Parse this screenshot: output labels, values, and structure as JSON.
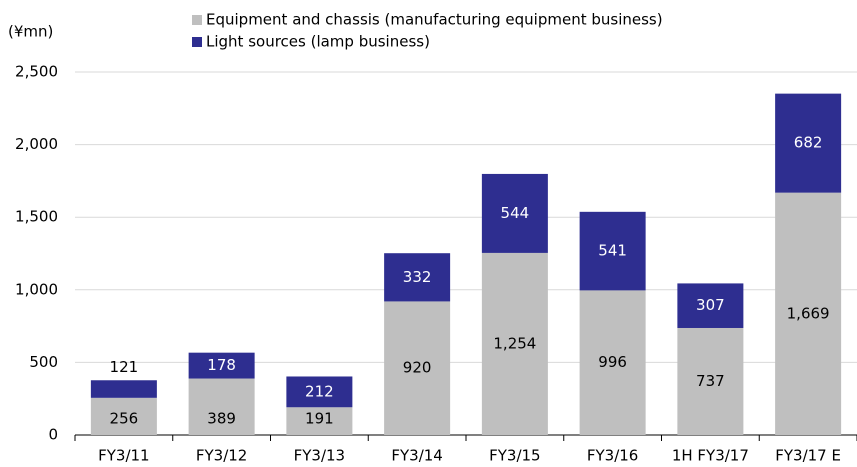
{
  "chart_data": {
    "type": "stacked_bar",
    "y_label": "(¥mn)",
    "categories": [
      "FY3/11",
      "FY3/12",
      "FY3/13",
      "FY3/14",
      "FY3/15",
      "FY3/16",
      "1H FY3/17",
      "FY3/17 E"
    ],
    "series": [
      {
        "name": "Equipment and chassis (manufacturing equipment business)",
        "color": "#bfbfbf",
        "values": [
          256,
          389,
          191,
          920,
          1254,
          996,
          737,
          1669
        ],
        "value_labels": [
          "256",
          "389",
          "191",
          "920",
          "1,254",
          "996",
          "737",
          "1,669"
        ]
      },
      {
        "name": "Light sources (lamp business)",
        "color": "#2e2e90",
        "values": [
          121,
          178,
          212,
          332,
          544,
          541,
          307,
          682
        ]
      }
    ],
    "ylim": [
      0,
      2500
    ],
    "yticks": [
      0,
      500,
      {
        "value": 1000,
        "label": "1,000"
      },
      {
        "value": 1500,
        "label": "1,500"
      },
      {
        "value": 2000,
        "label": "2,000"
      },
      {
        "value": 2500,
        "label": "2,500"
      }
    ],
    "grid": true
  }
}
